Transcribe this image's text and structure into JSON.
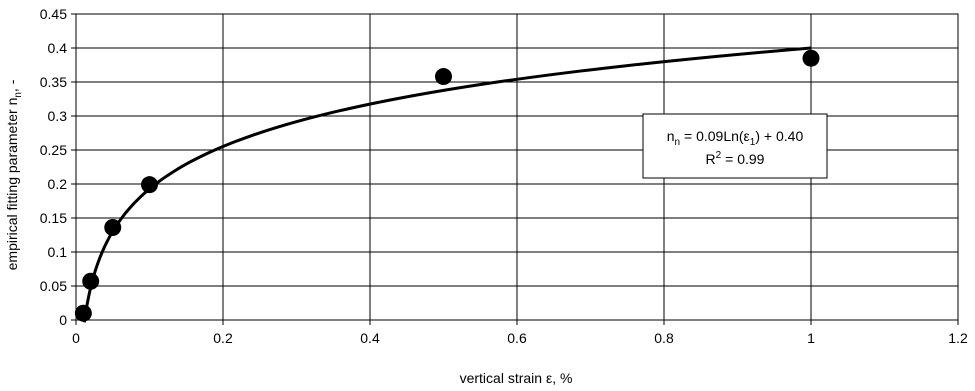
{
  "chart_data": {
    "type": "scatter",
    "xlabel_prefix": "vertical strain ",
    "xlabel_symbol": "ε",
    "xlabel_suffix": ", %",
    "ylabel_main": "empirical fitting parameter n",
    "ylabel_sub": "n",
    "ylabel_suffix": ", -",
    "xlim": [
      0,
      1.2
    ],
    "ylim": [
      0,
      0.45
    ],
    "x_ticks": [
      "0",
      "0.2",
      "0.4",
      "0.6",
      "0.8",
      "1",
      "1.2"
    ],
    "y_ticks": [
      "0",
      "0.05",
      "0.1",
      "0.15",
      "0.2",
      "0.25",
      "0.3",
      "0.35",
      "0.4",
      "0.45"
    ],
    "grid": true,
    "points": [
      {
        "x": 0.01,
        "y": 0.01
      },
      {
        "x": 0.02,
        "y": 0.057
      },
      {
        "x": 0.05,
        "y": 0.136
      },
      {
        "x": 0.1,
        "y": 0.199
      },
      {
        "x": 0.5,
        "y": 0.358
      },
      {
        "x": 1.0,
        "y": 0.385
      }
    ],
    "trendline": {
      "type": "logarithmic",
      "a": 0.09,
      "b": 0.4,
      "x_range": [
        0.0113,
        1.0
      ]
    },
    "annotation": {
      "eq_left": "n",
      "eq_left_sub": "n",
      "eq_mid": " = 0.09Ln(ε",
      "eq_mid_sub": "1",
      "eq_right": ") + 0.40",
      "r2_left": "R",
      "r2_sup": "2",
      "r2_right": " = 0.99"
    }
  }
}
